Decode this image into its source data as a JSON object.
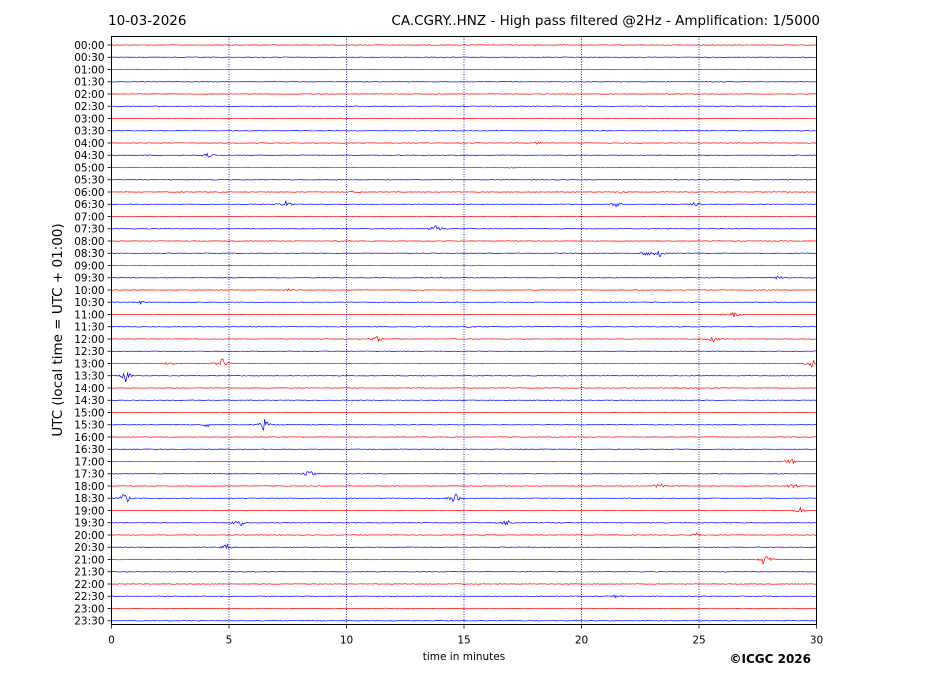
{
  "header": {
    "date": "10-03-2026",
    "title": "CA.CGRY..HNZ - High pass filtered @2Hz - Amplification: 1/5000"
  },
  "footer": {
    "copyright": "©ICGC 2026"
  },
  "colors": {
    "trace_a": "#ff0000",
    "trace_b": "#0000ff",
    "grid": "#000080",
    "axis": "#000000",
    "background": "#ffffff"
  },
  "chart_data": {
    "type": "line",
    "xlabel": "time in minutes",
    "ylabel": "UTC (local time = UTC + 01:00)",
    "xlim": [
      0,
      30
    ],
    "xticks": [
      0,
      5,
      10,
      15,
      20,
      25,
      30
    ],
    "vertical_gridlines": [
      5,
      10,
      15,
      20,
      25
    ],
    "row_labels": [
      "00:00",
      "00:30",
      "01:00",
      "01:30",
      "02:00",
      "02:30",
      "03:00",
      "03:30",
      "04:00",
      "04:30",
      "05:00",
      "05:30",
      "06:00",
      "06:30",
      "07:00",
      "07:30",
      "08:00",
      "08:30",
      "09:00",
      "09:30",
      "10:00",
      "10:30",
      "11:00",
      "11:30",
      "12:00",
      "12:30",
      "13:00",
      "13:30",
      "14:00",
      "14:30",
      "15:00",
      "15:30",
      "16:00",
      "16:30",
      "17:00",
      "17:30",
      "18:00",
      "18:30",
      "19:00",
      "19:30",
      "20:00",
      "20:30",
      "21:00",
      "21:30",
      "22:00",
      "22:30",
      "23:00",
      "23:30"
    ],
    "row_colors": [
      "trace_a",
      "trace_b"
    ],
    "events": [
      {
        "row": "04:00",
        "minute": 18.1,
        "amp": 0.25
      },
      {
        "row": "04:30",
        "minute": 4.1,
        "amp": 0.35
      },
      {
        "row": "05:00",
        "minute": 17.0,
        "amp": 0.15
      },
      {
        "row": "06:00",
        "minute": 10.3,
        "amp": 0.3
      },
      {
        "row": "06:00",
        "minute": 21.7,
        "amp": 0.3
      },
      {
        "row": "06:30",
        "minute": 7.4,
        "amp": 0.6
      },
      {
        "row": "06:30",
        "minute": 21.5,
        "amp": 0.6
      },
      {
        "row": "06:30",
        "minute": 24.9,
        "amp": 0.7
      },
      {
        "row": "07:30",
        "minute": 13.8,
        "amp": 0.8
      },
      {
        "row": "08:00",
        "minute": 9.7,
        "amp": 0.25
      },
      {
        "row": "08:30",
        "minute": 22.8,
        "amp": 0.6
      },
      {
        "row": "08:30",
        "minute": 23.3,
        "amp": 0.7
      },
      {
        "row": "09:30",
        "minute": 28.4,
        "amp": 0.35
      },
      {
        "row": "10:00",
        "minute": 7.6,
        "amp": 0.3
      },
      {
        "row": "10:30",
        "minute": 1.2,
        "amp": 0.3
      },
      {
        "row": "11:00",
        "minute": 26.5,
        "amp": 0.55
      },
      {
        "row": "11:30",
        "minute": 15.2,
        "amp": 0.3
      },
      {
        "row": "12:00",
        "minute": 11.3,
        "amp": 0.45
      },
      {
        "row": "12:00",
        "minute": 25.6,
        "amp": 0.45
      },
      {
        "row": "13:00",
        "minute": 2.5,
        "amp": 0.4
      },
      {
        "row": "13:00",
        "minute": 4.7,
        "amp": 0.8
      },
      {
        "row": "13:00",
        "minute": 29.8,
        "amp": 0.9
      },
      {
        "row": "13:30",
        "minute": 0.6,
        "amp": 0.9
      },
      {
        "row": "15:30",
        "minute": 6.5,
        "amp": 0.9
      },
      {
        "row": "15:30",
        "minute": 4.1,
        "amp": 0.4
      },
      {
        "row": "17:00",
        "minute": 28.9,
        "amp": 0.5
      },
      {
        "row": "17:30",
        "minute": 8.4,
        "amp": 0.7
      },
      {
        "row": "18:00",
        "minute": 23.3,
        "amp": 0.6
      },
      {
        "row": "18:00",
        "minute": 29.0,
        "amp": 0.6
      },
      {
        "row": "18:30",
        "minute": 0.6,
        "amp": 0.9
      },
      {
        "row": "18:30",
        "minute": 14.6,
        "amp": 0.9
      },
      {
        "row": "19:00",
        "minute": 29.3,
        "amp": 0.5
      },
      {
        "row": "19:30",
        "minute": 5.4,
        "amp": 0.8
      },
      {
        "row": "19:30",
        "minute": 16.8,
        "amp": 0.5
      },
      {
        "row": "20:00",
        "minute": 24.9,
        "amp": 0.5
      },
      {
        "row": "20:30",
        "minute": 4.9,
        "amp": 0.6
      },
      {
        "row": "21:00",
        "minute": 27.8,
        "amp": 1.0
      },
      {
        "row": "22:30",
        "minute": 21.4,
        "amp": 0.25
      }
    ]
  }
}
